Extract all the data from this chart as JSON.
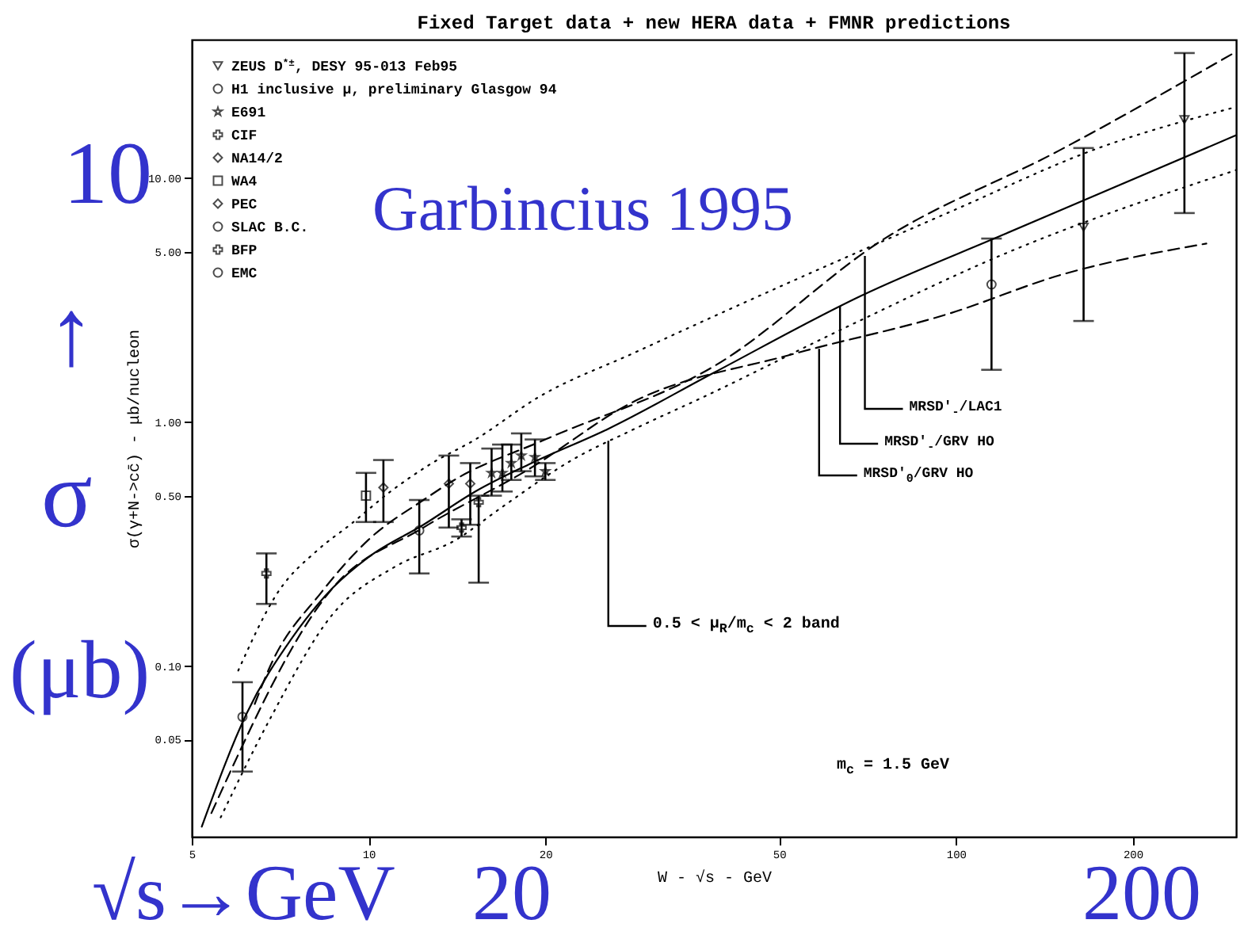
{
  "chart_data": {
    "type": "scatter",
    "title": "Fixed Target data + new HERA data + FMNR predictions",
    "xlabel": "W - √s - GeV",
    "ylabel": "σ(γ+N->cc̄) - μb/nucleon",
    "log": "xy",
    "legend": "top left",
    "xlim": [
      5,
      300
    ],
    "ylim": [
      0.02,
      37
    ],
    "xticks": [
      5,
      10,
      20,
      50,
      100,
      200
    ],
    "yticks": [
      {
        "value": 0.05,
        "label": "0.05"
      },
      {
        "value": 0.1,
        "label": "0.10"
      },
      {
        "value": 0.5,
        "label": "0.50"
      },
      {
        "value": 1,
        "label": "1.00"
      },
      {
        "value": 5,
        "label": "5.00"
      },
      {
        "value": 10,
        "label": "10.00"
      }
    ],
    "series": [
      {
        "name": "ZEUS D$^{*±}$, DESY 95-013 Feb95",
        "type": "scatter",
        "marker": "triangle",
        "color": "#000000",
        "x": [
          165,
          245
        ],
        "values": [
          6.3,
          17.4
        ],
        "errors": [
          [
            2.6,
            13.3
          ],
          [
            7.2,
            32.6
          ]
        ]
      },
      {
        "name": "H1 inclusive μ, preliminary Glasgow 94",
        "type": "scatter",
        "marker": "circle",
        "color": "#000000",
        "x": [
          115
        ],
        "values": [
          3.67
        ],
        "errors": [
          [
            1.64,
            5.66
          ]
        ]
      },
      {
        "name": "E691",
        "type": "scatter",
        "marker": "star",
        "color": "#000000",
        "x": [
          16.2,
          16.9,
          17.5,
          18.2,
          19.2,
          20.0
        ],
        "values": [
          0.62,
          0.62,
          0.68,
          0.73,
          0.72,
          0.63
        ],
        "errors": [
          [
            0.5,
            0.78
          ],
          [
            0.52,
            0.81
          ],
          [
            0.58,
            0.81
          ],
          [
            0.63,
            0.9
          ],
          [
            0.6,
            0.85
          ],
          [
            0.58,
            0.68
          ]
        ]
      },
      {
        "name": "CIF",
        "type": "scatter",
        "marker": "cross",
        "color": "#000000",
        "x": [
          14.4,
          15.4
        ],
        "values": [
          0.37,
          0.47
        ],
        "errors": [
          [
            0.34,
            0.4
          ],
          [
            0.22,
            0.5
          ]
        ]
      },
      {
        "name": "NA14/2",
        "type": "scatter",
        "marker": "diamond",
        "color": "#000000",
        "x": [
          13.7,
          14.9
        ],
        "values": [
          0.56,
          0.56
        ],
        "errors": [
          [
            0.37,
            0.73
          ],
          [
            0.38,
            0.68
          ]
        ]
      },
      {
        "name": "WA4",
        "type": "scatter",
        "marker": "square",
        "color": "#000000",
        "x": [
          9.9
        ],
        "values": [
          0.5
        ],
        "errors": [
          [
            0.39,
            0.62
          ]
        ]
      },
      {
        "name": "PEC",
        "type": "scatter",
        "marker": "diamond",
        "color": "#000000",
        "x": [
          10.6
        ],
        "values": [
          0.54
        ],
        "errors": [
          [
            0.39,
            0.7
          ]
        ]
      },
      {
        "name": "SLAC B.C.",
        "type": "scatter",
        "marker": "circle",
        "color": "#000000",
        "x": [
          6.1
        ],
        "values": [
          0.062
        ],
        "errors": [
          [
            0.037,
            0.086
          ]
        ]
      },
      {
        "name": "BFP",
        "type": "scatter",
        "marker": "cross",
        "color": "#000000",
        "x": [
          6.7
        ],
        "values": [
          0.24
        ],
        "errors": [
          [
            0.18,
            0.29
          ]
        ]
      },
      {
        "name": "EMC",
        "type": "scatter",
        "marker": "circle",
        "color": "#000000",
        "x": [
          12.2
        ],
        "values": [
          0.36
        ],
        "errors": [
          [
            0.24,
            0.48
          ]
        ]
      },
      {
        "type": "line",
        "line_style": "dashed",
        "color": "#000000",
        "x": [
          6.4,
          6.8,
          8.3,
          10,
          12.4,
          14,
          20,
          38.8,
          76,
          150,
          300
        ],
        "values": [
          0.07,
          0.1,
          0.2,
          0.33,
          0.48,
          0.58,
          0.85,
          1.7,
          5.7,
          13,
          33
        ]
      },
      {
        "type": "line",
        "line_style": "solid",
        "color": "#000000",
        "x": [
          5.2,
          6.2,
          7.4,
          8.7,
          10,
          12.4,
          15.2,
          18.7,
          25.6,
          38.8,
          69,
          121,
          300
        ],
        "values": [
          0.022,
          0.064,
          0.13,
          0.21,
          0.28,
          0.38,
          0.52,
          0.67,
          0.94,
          1.6,
          3.3,
          5.9,
          15
        ]
      },
      {
        "type": "line",
        "line_style": "dashed",
        "color": "#000000",
        "x": [
          5.4,
          8.7,
          12.4,
          18.7,
          28,
          52.7,
          98,
          150,
          267
        ],
        "values": [
          0.025,
          0.21,
          0.37,
          0.64,
          1.2,
          1.9,
          2.8,
          4.0,
          5.4
        ]
      },
      {
        "type": "line",
        "line_style": "dotted",
        "color": "#000000",
        "x": [
          6.0,
          7.0,
          8.2,
          9.3,
          10.9,
          12.7,
          15.2,
          19.5,
          28.4,
          37.2,
          98,
          175,
          300
        ],
        "values": [
          0.096,
          0.2,
          0.3,
          0.38,
          0.52,
          0.67,
          0.85,
          1.27,
          1.93,
          2.6,
          7.3,
          13.3,
          19.6
        ]
      },
      {
        "type": "line",
        "line_style": "dotted",
        "color": "#000000",
        "x": [
          5.6,
          6.8,
          8.7,
          11.1,
          14.1,
          16.9,
          22.2,
          28.4,
          37.2,
          65,
          121,
          300
        ],
        "values": [
          0.024,
          0.061,
          0.164,
          0.256,
          0.33,
          0.45,
          0.7,
          0.94,
          1.27,
          2.45,
          4.9,
          10.8
        ]
      }
    ],
    "annotations": [
      "Garbincius 1995",
      "10",
      "↑",
      "σ",
      "(μb)",
      "√s→GeV",
      "20",
      "200",
      "m$_{c}$ = 1.5 GeV",
      {
        "text": "MRSD'$_{-}$/LAC1",
        "x": 70,
        "y": 4.8
      },
      {
        "text": "MRSD'$_{-}$/GRV HO",
        "x": 63.5,
        "y": 3.0
      },
      {
        "text": "MRSD'$_{0}$/GRV HO",
        "x": 58.5,
        "y": 2.0
      },
      {
        "text": "0.5 < μ$_{R}$/m$_{c}$ < 2 band",
        "x": 25.6,
        "y": 0.84
      }
    ]
  }
}
